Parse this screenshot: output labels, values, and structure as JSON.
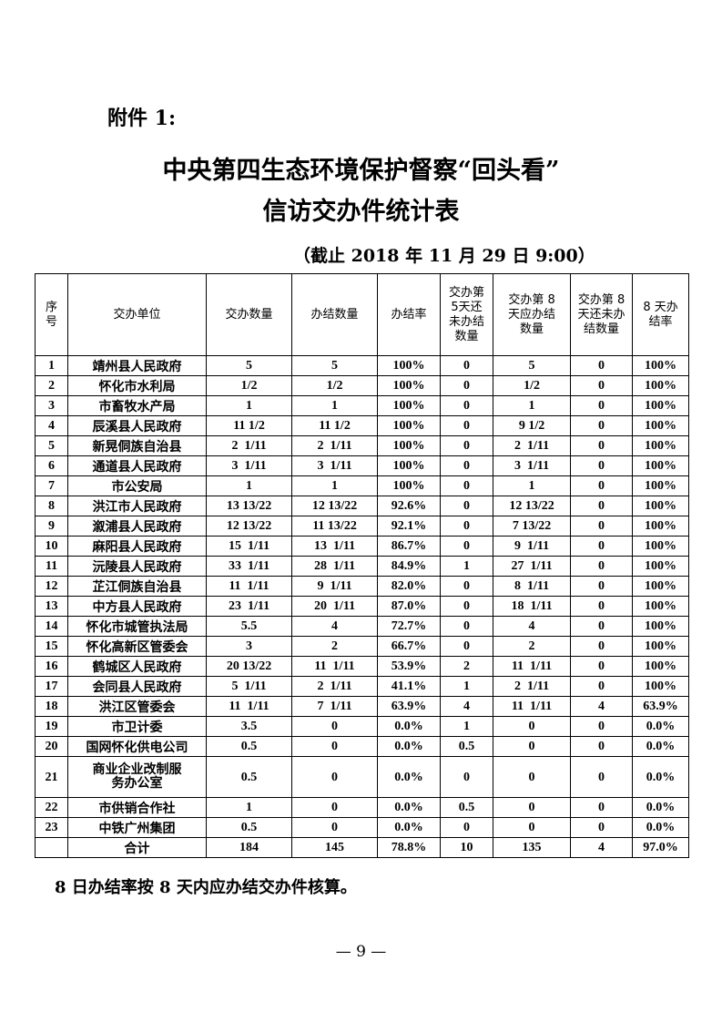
{
  "attachment": "附件 1:",
  "title_line1": "中央第四生态环境保护督察“回头看”",
  "title_line2": "信访交办件统计表",
  "cutoff": "（截止 2018 年 11 月 29 日 9:00）",
  "table": {
    "headers": [
      "序号",
      "交办单位",
      "交办数量",
      "办结数量",
      "办结率",
      "交办第5天还未办结数量",
      "交办第 8 天应办结数量",
      "交办第 8 天还未办结数量",
      "8 天办结率"
    ],
    "rows": [
      [
        "1",
        "靖州县人民政府",
        "5",
        "5",
        "100%",
        "0",
        "5",
        "0",
        "100%"
      ],
      [
        "2",
        "怀化市水利局",
        "1/2",
        "1/2",
        "100%",
        "0",
        "1/2",
        "0",
        "100%"
      ],
      [
        "3",
        "市畜牧水产局",
        "1",
        "1",
        "100%",
        "0",
        "1",
        "0",
        "100%"
      ],
      [
        "4",
        "辰溪县人民政府",
        "11 1/2",
        "11 1/2",
        "100%",
        "0",
        "9 1/2",
        "0",
        "100%"
      ],
      [
        "5",
        "新晃侗族自治县",
        "2  1/11",
        "2  1/11",
        "100%",
        "0",
        "2  1/11",
        "0",
        "100%"
      ],
      [
        "6",
        "通道县人民政府",
        "3  1/11",
        "3  1/11",
        "100%",
        "0",
        "3  1/11",
        "0",
        "100%"
      ],
      [
        "7",
        "市公安局",
        "1",
        "1",
        "100%",
        "0",
        "1",
        "0",
        "100%"
      ],
      [
        "8",
        "洪江市人民政府",
        "13 13/22",
        "12 13/22",
        "92.6%",
        "0",
        "12 13/22",
        "0",
        "100%"
      ],
      [
        "9",
        "溆浦县人民政府",
        "12 13/22",
        "11 13/22",
        "92.1%",
        "0",
        "7 13/22",
        "0",
        "100%"
      ],
      [
        "10",
        "麻阳县人民政府",
        "15  1/11",
        "13  1/11",
        "86.7%",
        "0",
        "9  1/11",
        "0",
        "100%"
      ],
      [
        "11",
        "沅陵县人民政府",
        "33  1/11",
        "28  1/11",
        "84.9%",
        "1",
        "27  1/11",
        "0",
        "100%"
      ],
      [
        "12",
        "芷江侗族自治县",
        "11  1/11",
        "9  1/11",
        "82.0%",
        "0",
        "8  1/11",
        "0",
        "100%"
      ],
      [
        "13",
        "中方县人民政府",
        "23  1/11",
        "20  1/11",
        "87.0%",
        "0",
        "18  1/11",
        "0",
        "100%"
      ],
      [
        "14",
        "怀化市城管执法局",
        "5.5",
        "4",
        "72.7%",
        "0",
        "4",
        "0",
        "100%"
      ],
      [
        "15",
        "怀化高新区管委会",
        "3",
        "2",
        "66.7%",
        "0",
        "2",
        "0",
        "100%"
      ],
      [
        "16",
        "鹤城区人民政府",
        "20 13/22",
        "11  1/11",
        "53.9%",
        "2",
        "11  1/11",
        "0",
        "100%"
      ],
      [
        "17",
        "会同县人民政府",
        "5  1/11",
        "2  1/11",
        "41.1%",
        "1",
        "2  1/11",
        "0",
        "100%"
      ],
      [
        "18",
        "洪江区管委会",
        "11  1/11",
        "7  1/11",
        "63.9%",
        "4",
        "11  1/11",
        "4",
        "63.9%"
      ],
      [
        "19",
        "市卫计委",
        "3.5",
        "0",
        "0.0%",
        "1",
        "0",
        "0",
        "0.0%"
      ],
      [
        "20",
        "国网怀化供电公司",
        "0.5",
        "0",
        "0.0%",
        "0.5",
        "0",
        "0",
        "0.0%"
      ],
      [
        "21",
        "商业企业改制服务办公室",
        "0.5",
        "0",
        "0.0%",
        "0",
        "0",
        "0",
        "0.0%"
      ],
      [
        "22",
        "市供销合作社",
        "1",
        "0",
        "0.0%",
        "0.5",
        "0",
        "0",
        "0.0%"
      ],
      [
        "23",
        "中铁广州集团",
        "0.5",
        "0",
        "0.0%",
        "0",
        "0",
        "0",
        "0.0%"
      ],
      [
        "",
        "合计",
        "184",
        "145",
        "78.8%",
        "10",
        "135",
        "4",
        "97.0%"
      ]
    ]
  },
  "note": "8 日办结率按 8 天内应办结交办件核算。",
  "page_number": "— 9 —"
}
